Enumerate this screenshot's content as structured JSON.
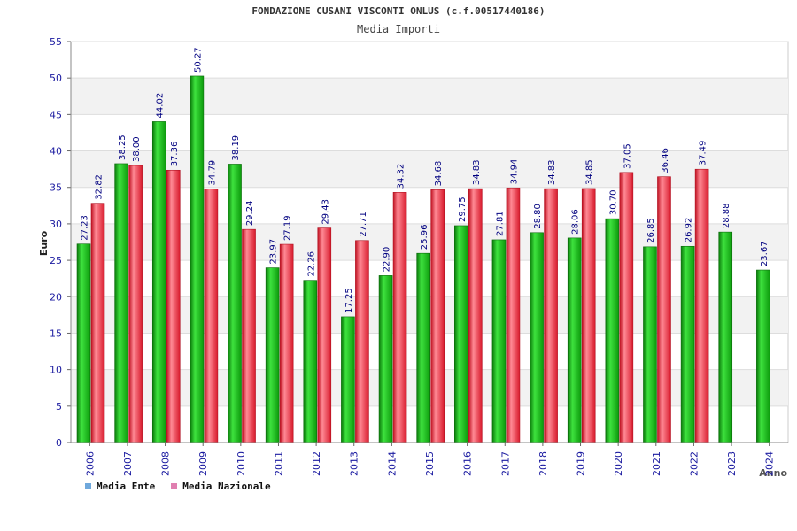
{
  "header": {
    "title": "FONDAZIONE CUSANI VISCONTI ONLUS (c.f.00517440186)",
    "subtitle": "Media Importi"
  },
  "legend": {
    "ente_label": "Media Ente",
    "nazionale_label": "Media Nazionale",
    "ente_color": "#6fa8dc",
    "nazionale_color": "#e07fb0"
  },
  "colors": {
    "ente_bar": "#1fbf1f",
    "nazionale_bar": "#ee4455",
    "axis_text": "#1a1aa0",
    "value_label": "#000080"
  },
  "chart_data": {
    "type": "bar",
    "title": "Media Importi",
    "xlabel": "Anno",
    "ylabel": "Euro",
    "ylim": [
      0,
      55
    ],
    "yticks": [
      0,
      5,
      10,
      15,
      20,
      25,
      30,
      35,
      40,
      45,
      50,
      55
    ],
    "grid": true,
    "legend_position": "bottom-left",
    "categories": [
      "2006",
      "2007",
      "2008",
      "2009",
      "2010",
      "2011",
      "2012",
      "2013",
      "2014",
      "2015",
      "2016",
      "2017",
      "2018",
      "2019",
      "2020",
      "2021",
      "2022",
      "2023",
      "2024"
    ],
    "series": [
      {
        "name": "Media Ente",
        "values": [
          27.23,
          38.25,
          44.02,
          50.27,
          38.19,
          23.97,
          22.26,
          17.25,
          22.9,
          25.96,
          29.75,
          27.81,
          28.8,
          28.06,
          30.7,
          26.85,
          26.92,
          28.88,
          23.67
        ],
        "labels": [
          "27.23",
          "38.25",
          "44.02",
          "50.27",
          "38.19",
          "23.97",
          "22.26",
          "17.25",
          "22.90",
          "25.96",
          "29.75",
          "27.81",
          "28.80",
          "28.06",
          "30.70",
          "26.85",
          "26.92",
          "28.88",
          "23.67"
        ]
      },
      {
        "name": "Media Nazionale",
        "values": [
          32.82,
          38.0,
          37.36,
          34.79,
          29.24,
          27.19,
          29.43,
          27.71,
          34.32,
          34.68,
          34.83,
          34.94,
          34.83,
          34.85,
          37.05,
          36.46,
          37.49,
          null,
          null
        ],
        "labels": [
          "32.82",
          "38.00",
          "37.36",
          "34.79",
          "29.24",
          "27.19",
          "29.43",
          "27.71",
          "34.32",
          "34.68",
          "34.83",
          "34.94",
          "34.83",
          "34.85",
          "37.05",
          "36.46",
          "37.49",
          null,
          null
        ]
      }
    ]
  }
}
